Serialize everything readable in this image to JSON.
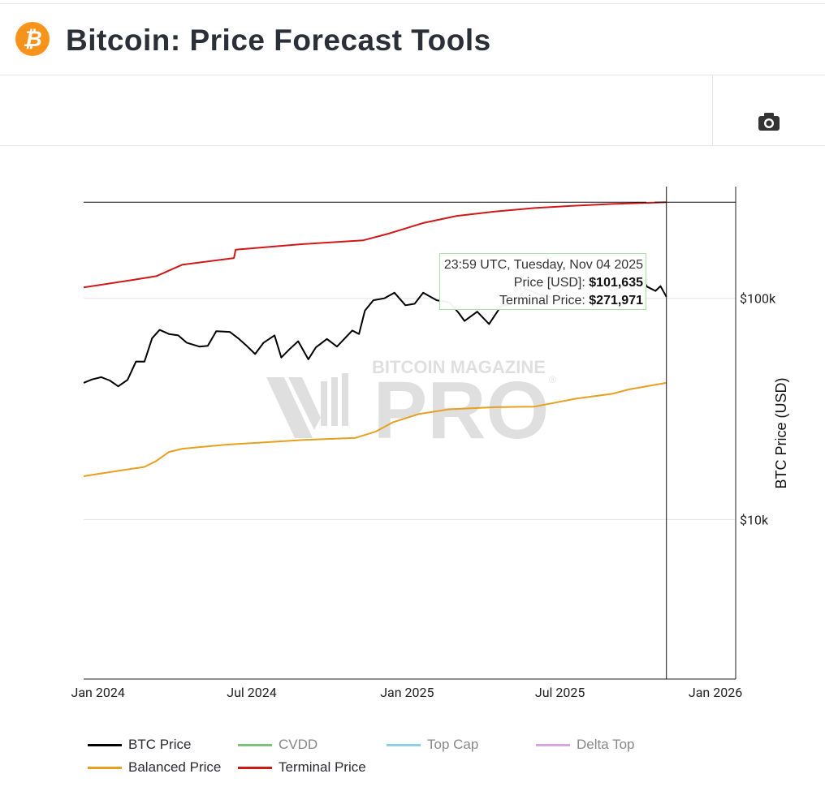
{
  "header": {
    "title": "Bitcoin: Price Forecast Tools",
    "logo_glyph": "₿",
    "logo_color": "#f7931a"
  },
  "toolbar": {
    "camera_icon": "camera-icon"
  },
  "watermark": {
    "top": "BITCOIN MAGAZINE",
    "main": "PRO",
    "mark": "®"
  },
  "tooltip": {
    "time": "23:59 UTC, Tuesday, Nov 04 2025",
    "price_label": "Price [USD]:",
    "price_value": "$101,635",
    "terminal_label": "Terminal Price:",
    "terminal_value": "$271,971"
  },
  "legend": [
    {
      "name": "BTC Price",
      "color": "#000000",
      "active": true
    },
    {
      "name": "CVDD",
      "color": "#7cc47c",
      "active": false
    },
    {
      "name": "Top Cap",
      "color": "#8fd0e6",
      "active": false
    },
    {
      "name": "Delta Top",
      "color": "#d9a7e0",
      "active": false
    },
    {
      "name": "Balanced Price",
      "color": "#e8a020",
      "active": true
    },
    {
      "name": "Terminal Price",
      "color": "#d01818",
      "active": true
    }
  ],
  "chart_data": {
    "type": "line",
    "x_axis": {
      "ticks": [
        "Jan 2024",
        "Jul 2024",
        "Jan 2025",
        "Jul 2025",
        "Jan 2026"
      ],
      "range": [
        "2023-12-15",
        "2026-01-25"
      ]
    },
    "y_axis": {
      "label": "BTC Price (USD)",
      "scale": "log",
      "ticks": [
        "$10k",
        "$100k"
      ],
      "range": [
        1900,
        320000
      ]
    },
    "crosshair": {
      "x": "2025-11-04",
      "y": 271971
    },
    "series": [
      {
        "name": "BTC Price",
        "color": "#000000",
        "points": [
          [
            "2023-12-15",
            41500
          ],
          [
            "2023-12-25",
            43000
          ],
          [
            "2024-01-05",
            44000
          ],
          [
            "2024-01-15",
            42500
          ],
          [
            "2024-01-25",
            40000
          ],
          [
            "2024-02-05",
            42800
          ],
          [
            "2024-02-15",
            51800
          ],
          [
            "2024-02-25",
            51700
          ],
          [
            "2024-03-05",
            66000
          ],
          [
            "2024-03-14",
            72000
          ],
          [
            "2024-03-25",
            69000
          ],
          [
            "2024-04-05",
            68000
          ],
          [
            "2024-04-15",
            63000
          ],
          [
            "2024-04-30",
            60500
          ],
          [
            "2024-05-10",
            61000
          ],
          [
            "2024-05-20",
            71000
          ],
          [
            "2024-06-05",
            70500
          ],
          [
            "2024-06-15",
            66000
          ],
          [
            "2024-06-25",
            61000
          ],
          [
            "2024-07-05",
            56000
          ],
          [
            "2024-07-15",
            63000
          ],
          [
            "2024-07-28",
            68000
          ],
          [
            "2024-08-05",
            54000
          ],
          [
            "2024-08-15",
            59000
          ],
          [
            "2024-08-25",
            64000
          ],
          [
            "2024-09-06",
            53000
          ],
          [
            "2024-09-15",
            60000
          ],
          [
            "2024-09-28",
            65500
          ],
          [
            "2024-10-10",
            60500
          ],
          [
            "2024-10-28",
            71500
          ],
          [
            "2024-11-05",
            69000
          ],
          [
            "2024-11-12",
            88000
          ],
          [
            "2024-11-22",
            98000
          ],
          [
            "2024-12-05",
            100000
          ],
          [
            "2024-12-17",
            106000
          ],
          [
            "2024-12-30",
            93000
          ],
          [
            "2025-01-10",
            94500
          ],
          [
            "2025-01-20",
            106000
          ],
          [
            "2025-02-05",
            98000
          ],
          [
            "2025-02-20",
            96000
          ],
          [
            "2025-03-03",
            86000
          ],
          [
            "2025-03-10",
            79000
          ],
          [
            "2025-03-25",
            87000
          ],
          [
            "2025-04-08",
            76500
          ],
          [
            "2025-04-22",
            92000
          ],
          [
            "2025-05-05",
            94500
          ],
          [
            "2025-05-22",
            110000
          ],
          [
            "2025-06-05",
            104500
          ],
          [
            "2025-06-22",
            101000
          ],
          [
            "2025-07-01",
            107000
          ],
          [
            "2025-07-14",
            121000
          ],
          [
            "2025-08-01",
            114000
          ],
          [
            "2025-08-14",
            123000
          ],
          [
            "2025-09-01",
            108000
          ],
          [
            "2025-09-15",
            115500
          ],
          [
            "2025-09-25",
            109000
          ],
          [
            "2025-10-06",
            124500
          ],
          [
            "2025-10-12",
            113000
          ],
          [
            "2025-10-22",
            108000
          ],
          [
            "2025-10-28",
            113500
          ],
          [
            "2025-11-04",
            101635
          ]
        ]
      },
      {
        "name": "Balanced Price",
        "color": "#e8a020",
        "points": [
          [
            "2023-12-15",
            15700
          ],
          [
            "2024-01-20",
            16500
          ],
          [
            "2024-02-25",
            17300
          ],
          [
            "2024-03-10",
            18400
          ],
          [
            "2024-03-25",
            20200
          ],
          [
            "2024-04-10",
            20900
          ],
          [
            "2024-06-01",
            21800
          ],
          [
            "2024-09-01",
            22900
          ],
          [
            "2024-11-01",
            23400
          ],
          [
            "2024-11-25",
            25000
          ],
          [
            "2024-12-15",
            27500
          ],
          [
            "2025-01-15",
            30000
          ],
          [
            "2025-02-20",
            31500
          ],
          [
            "2025-04-15",
            32200
          ],
          [
            "2025-06-01",
            32400
          ],
          [
            "2025-07-20",
            35200
          ],
          [
            "2025-09-01",
            37000
          ],
          [
            "2025-09-20",
            38700
          ],
          [
            "2025-11-04",
            41500
          ]
        ]
      },
      {
        "name": "Terminal Price",
        "color": "#d01818",
        "points": [
          [
            "2023-12-15",
            112000
          ],
          [
            "2024-02-10",
            121000
          ],
          [
            "2024-03-10",
            126000
          ],
          [
            "2024-04-10",
            142000
          ],
          [
            "2024-06-10",
            152000
          ],
          [
            "2024-06-12",
            166000
          ],
          [
            "2024-09-01",
            176000
          ],
          [
            "2024-11-10",
            183000
          ],
          [
            "2024-12-10",
            196000
          ],
          [
            "2025-01-20",
            219000
          ],
          [
            "2025-03-01",
            236000
          ],
          [
            "2025-04-15",
            247000
          ],
          [
            "2025-06-01",
            256000
          ],
          [
            "2025-07-15",
            262000
          ],
          [
            "2025-09-01",
            267000
          ],
          [
            "2025-11-04",
            271971
          ]
        ]
      }
    ]
  }
}
